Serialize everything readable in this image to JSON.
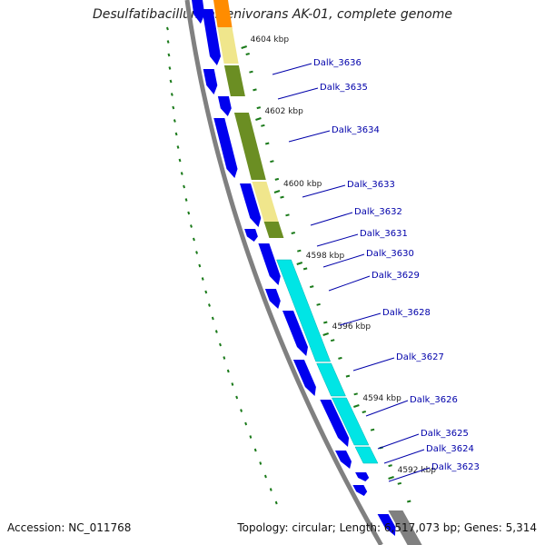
{
  "title": "Desulfatibacillum alkenivorans AK-01, complete genome",
  "accession": "Accession: NC_011768",
  "stats": "Topology: circular; Length: 6,517,073 bp; Genes: 5,314",
  "colors": {
    "forward_cds": "#0000ee",
    "olive": "#6b8e23",
    "tan": "#f0e68c",
    "cyan": "#00e5e5",
    "orange": "#ff8c00",
    "backbone": "#808080",
    "tick": "#1a7a1a",
    "label": "#0000aa",
    "ruler_text": "#222222"
  },
  "ruler": [
    "4604 kbp",
    "4602 kbp",
    "4600 kbp",
    "4598 kbp",
    "4596 kbp",
    "4594 kbp",
    "4592 kbp"
  ],
  "genes": [
    "Dalk_3636",
    "Dalk_3635",
    "Dalk_3634",
    "Dalk_3633",
    "Dalk_3632",
    "Dalk_3631",
    "Dalk_3630",
    "Dalk_3629",
    "Dalk_3628",
    "Dalk_3627",
    "Dalk_3626",
    "Dalk_3625",
    "Dalk_3624",
    "Dalk_3623"
  ]
}
